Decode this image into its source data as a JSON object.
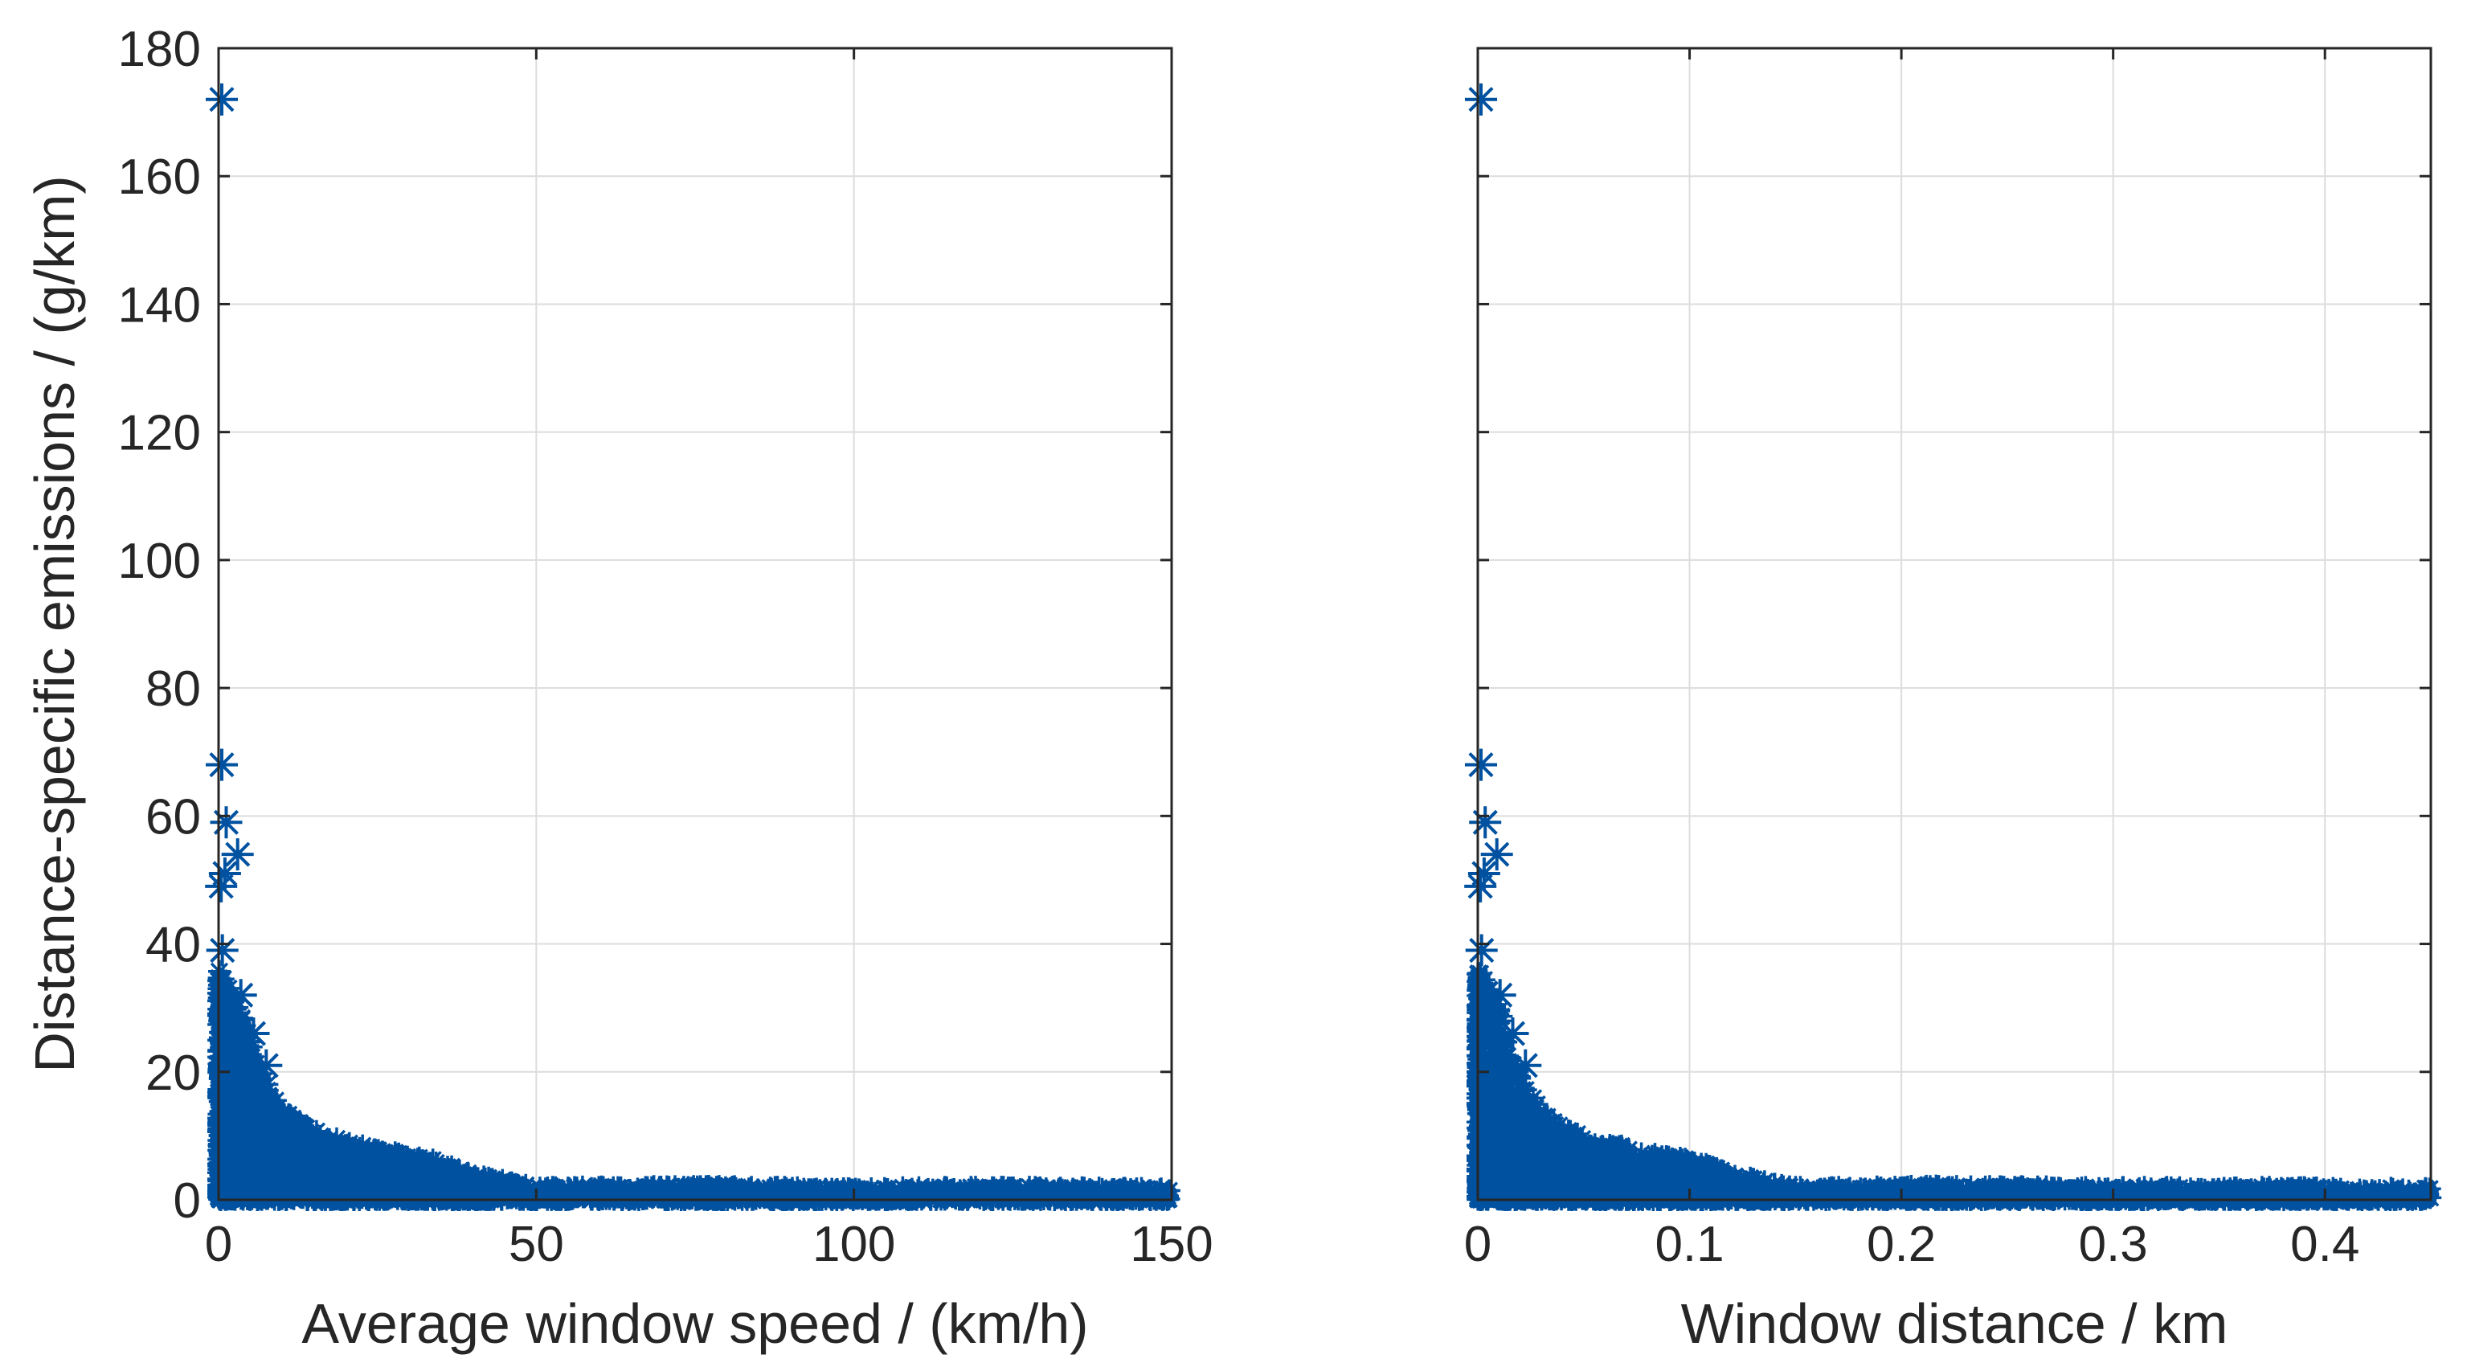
{
  "chart_data": [
    {
      "type": "scatter",
      "marker": "asterisk",
      "marker_color": "#0051a0",
      "grid": true,
      "xlabel": "Average window speed / (km/h)",
      "ylabel": "Distance-specific emissions / (g/km)",
      "xlim": [
        0,
        150
      ],
      "ylim": [
        0,
        180
      ],
      "xticks": [
        0,
        50,
        100,
        150
      ],
      "xtick_labels": [
        "0",
        "50",
        "100",
        "150"
      ],
      "yticks": [
        0,
        20,
        40,
        60,
        80,
        100,
        120,
        140,
        160,
        180
      ],
      "ytick_labels": [
        "0",
        "20",
        "40",
        "60",
        "80",
        "100",
        "120",
        "140",
        "160",
        "180"
      ],
      "outliers": [
        {
          "x": 0.5,
          "y": 172
        },
        {
          "x": 0.5,
          "y": 68
        },
        {
          "x": 1.2,
          "y": 59
        },
        {
          "x": 3.0,
          "y": 54
        },
        {
          "x": 1.0,
          "y": 51
        },
        {
          "x": 0.4,
          "y": 49
        },
        {
          "x": 0.6,
          "y": 39
        },
        {
          "x": 3.5,
          "y": 32
        },
        {
          "x": 5.5,
          "y": 26
        },
        {
          "x": 7.5,
          "y": 21
        }
      ],
      "envelope": [
        {
          "x": 0,
          "y": 36
        },
        {
          "x": 2,
          "y": 33
        },
        {
          "x": 4,
          "y": 28
        },
        {
          "x": 6,
          "y": 21
        },
        {
          "x": 10,
          "y": 14
        },
        {
          "x": 15,
          "y": 11
        },
        {
          "x": 20,
          "y": 9
        },
        {
          "x": 25,
          "y": 8
        },
        {
          "x": 30,
          "y": 7
        },
        {
          "x": 35,
          "y": 6
        },
        {
          "x": 40,
          "y": 4
        },
        {
          "x": 45,
          "y": 3
        },
        {
          "x": 50,
          "y": 2
        },
        {
          "x": 70,
          "y": 2.2
        },
        {
          "x": 100,
          "y": 2
        },
        {
          "x": 130,
          "y": 2
        },
        {
          "x": 150,
          "y": 1.8
        }
      ]
    },
    {
      "type": "scatter",
      "marker": "asterisk",
      "marker_color": "#0051a0",
      "grid": true,
      "xlabel": "Window distance / km",
      "ylabel": "",
      "xlim": [
        0,
        0.45
      ],
      "ylim": [
        0,
        180
      ],
      "xticks": [
        0,
        0.1,
        0.2,
        0.3,
        0.4
      ],
      "xtick_labels": [
        "0",
        "0.1",
        "0.2",
        "0.3",
        "0.4"
      ],
      "yticks": [
        0,
        20,
        40,
        60,
        80,
        100,
        120,
        140,
        160,
        180
      ],
      "outliers": [
        {
          "x": 0.0015,
          "y": 172
        },
        {
          "x": 0.0015,
          "y": 68
        },
        {
          "x": 0.0035,
          "y": 59
        },
        {
          "x": 0.009,
          "y": 54
        },
        {
          "x": 0.003,
          "y": 51
        },
        {
          "x": 0.0012,
          "y": 49
        },
        {
          "x": 0.0018,
          "y": 39
        },
        {
          "x": 0.0105,
          "y": 32
        },
        {
          "x": 0.0165,
          "y": 26
        },
        {
          "x": 0.0225,
          "y": 21
        }
      ],
      "envelope": [
        {
          "x": 0,
          "y": 36
        },
        {
          "x": 0.006,
          "y": 33
        },
        {
          "x": 0.012,
          "y": 28
        },
        {
          "x": 0.018,
          "y": 21
        },
        {
          "x": 0.03,
          "y": 14
        },
        {
          "x": 0.045,
          "y": 11
        },
        {
          "x": 0.06,
          "y": 9
        },
        {
          "x": 0.075,
          "y": 8
        },
        {
          "x": 0.09,
          "y": 7
        },
        {
          "x": 0.105,
          "y": 6
        },
        {
          "x": 0.12,
          "y": 4
        },
        {
          "x": 0.135,
          "y": 3
        },
        {
          "x": 0.15,
          "y": 2
        },
        {
          "x": 0.21,
          "y": 2.2
        },
        {
          "x": 0.3,
          "y": 2
        },
        {
          "x": 0.39,
          "y": 2
        },
        {
          "x": 0.45,
          "y": 1.8
        }
      ]
    }
  ]
}
